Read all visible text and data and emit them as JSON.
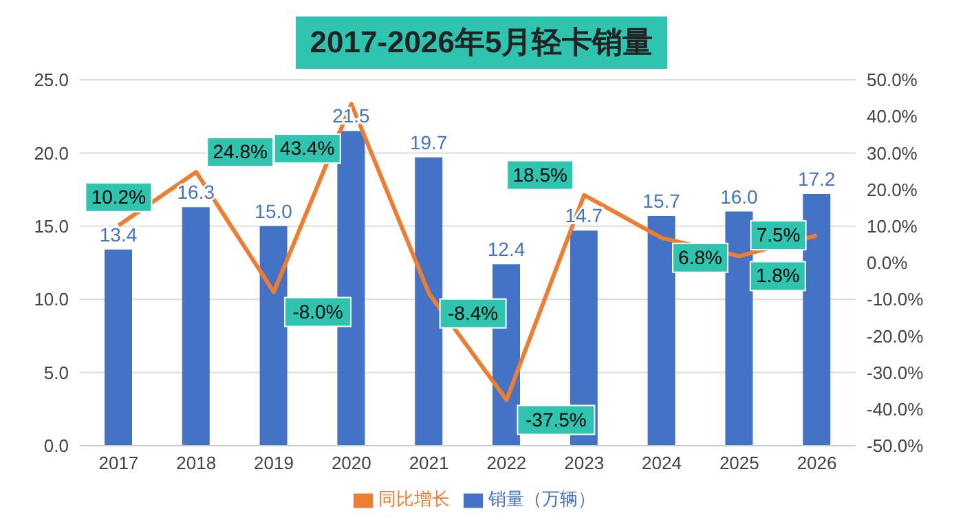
{
  "chart_data": {
    "type": "bar",
    "title": "2017-2026年5月轻卡销量",
    "categories": [
      "2017",
      "2018",
      "2019",
      "2020",
      "2021",
      "2022",
      "2023",
      "2024",
      "2025",
      "2026"
    ],
    "series": [
      {
        "name": "销量（万辆）",
        "color": "#4472c4",
        "values": [
          13.4,
          16.3,
          15.0,
          21.5,
          19.7,
          12.4,
          14.7,
          15.7,
          16.0,
          17.2
        ],
        "value_labels": [
          "13.4",
          "16.3",
          "15.0",
          "21.5",
          "19.7",
          "12.4",
          "14.7",
          "15.7",
          "16.0",
          "17.2"
        ]
      },
      {
        "name": "同比增长",
        "type": "line",
        "axis": "y2",
        "color": "#ed7d31",
        "values": [
          10.2,
          24.8,
          -8.0,
          43.4,
          -8.4,
          -37.5,
          18.5,
          6.8,
          1.8,
          7.5
        ],
        "value_labels": [
          "10.2%",
          "24.8%",
          "-8.0%",
          "43.4%",
          "-8.4%",
          "-37.5%",
          "18.5%",
          "6.8%",
          "1.8%",
          "7.5%"
        ]
      }
    ],
    "ylim": [
      0,
      25
    ],
    "yticks": [
      {
        "value": 0,
        "label": "0.0"
      },
      {
        "value": 5,
        "label": "5.0"
      },
      {
        "value": 10,
        "label": "10.0"
      },
      {
        "value": 15,
        "label": "15.0"
      },
      {
        "value": 20,
        "label": "20.0"
      },
      {
        "value": 25,
        "label": "25.0"
      }
    ],
    "y2lim": [
      -50,
      50
    ],
    "y2ticks": [
      {
        "value": -50,
        "label": "-50.0%"
      },
      {
        "value": -40,
        "label": "-40.0%"
      },
      {
        "value": -30,
        "label": "-30.0%"
      },
      {
        "value": -20,
        "label": "-20.0%"
      },
      {
        "value": -10,
        "label": "-10.0%"
      },
      {
        "value": 0,
        "label": "0.0%"
      },
      {
        "value": 10,
        "label": "10.0%"
      },
      {
        "value": 20,
        "label": "20.0%"
      },
      {
        "value": 30,
        "label": "30.0%"
      },
      {
        "value": 40,
        "label": "40.0%"
      },
      {
        "value": 50,
        "label": "50.0%"
      }
    ],
    "grid": "y",
    "legend": "bottom",
    "marker": "none",
    "line_style": "solid"
  }
}
